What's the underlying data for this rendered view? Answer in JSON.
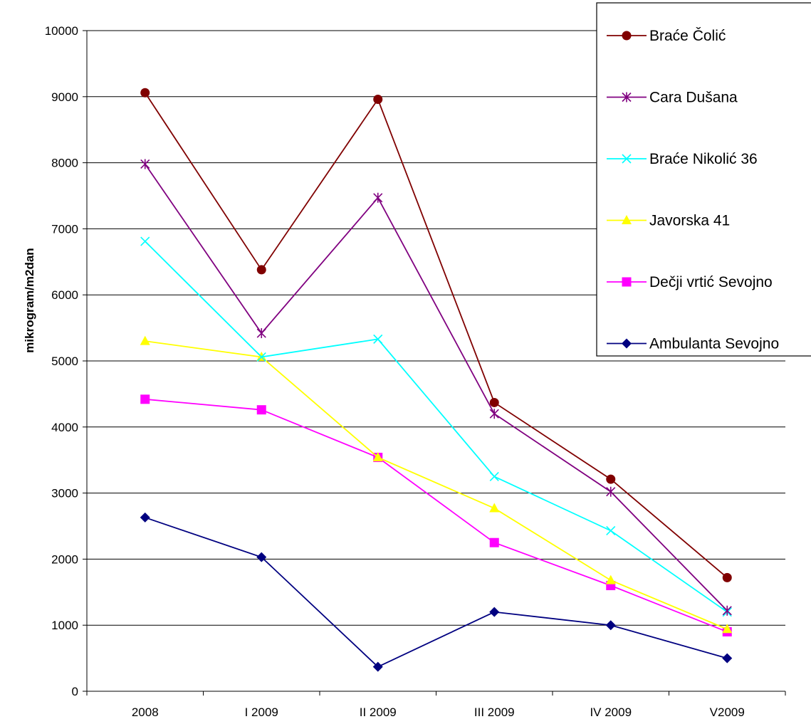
{
  "chart_data": {
    "type": "line",
    "title": "",
    "xlabel": "",
    "ylabel": "mikrogram/m2dan",
    "ylim": [
      0,
      10000
    ],
    "ytick_step": 1000,
    "grid": true,
    "legend_position": "top-right",
    "categories": [
      "2008",
      "I 2009",
      "II 2009",
      "III 2009",
      "IV 2009",
      "V2009"
    ],
    "series": [
      {
        "name": "Braće Čolić",
        "color": "#800000",
        "marker": "circle",
        "values": [
          9060,
          6380,
          8960,
          4370,
          3210,
          1720
        ]
      },
      {
        "name": "Cara Dušana",
        "color": "#800080",
        "marker": "asterisk",
        "values": [
          7980,
          5420,
          7470,
          4200,
          3020,
          1220
        ]
      },
      {
        "name": "Braće Nikolić 36",
        "color": "#00FFFF",
        "marker": "x",
        "values": [
          6810,
          5060,
          5330,
          3250,
          2430,
          1200
        ]
      },
      {
        "name": "Javorska 41",
        "color": "#FFFF00",
        "marker": "triangle",
        "values": [
          5300,
          5060,
          3540,
          2770,
          1680,
          940
        ]
      },
      {
        "name": "Dečji vrtić Sevojno",
        "color": "#FF00FF",
        "marker": "square",
        "values": [
          4420,
          4260,
          3540,
          2250,
          1600,
          900
        ]
      },
      {
        "name": "Ambulanta Sevojno",
        "color": "#000080",
        "marker": "diamond",
        "values": [
          2630,
          2030,
          370,
          1200,
          1000,
          500
        ]
      }
    ]
  }
}
